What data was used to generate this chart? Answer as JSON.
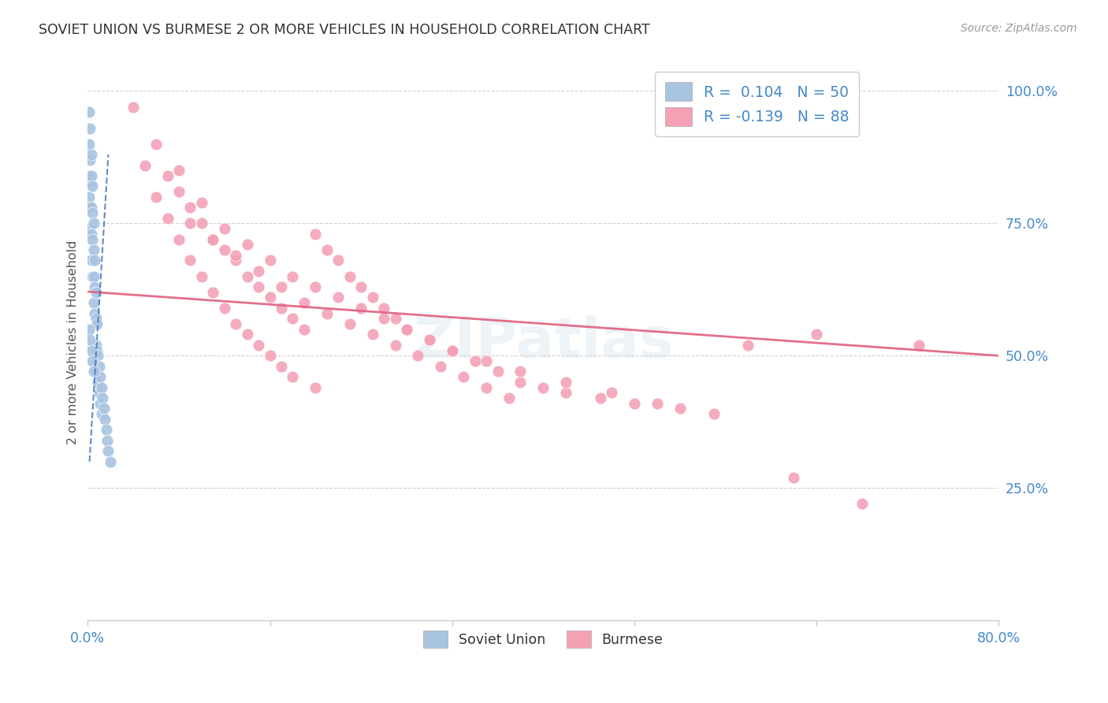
{
  "title": "SOVIET UNION VS BURMESE 2 OR MORE VEHICLES IN HOUSEHOLD CORRELATION CHART",
  "source": "Source: ZipAtlas.com",
  "ylabel": "2 or more Vehicles in Household",
  "legend_soviet_R": "0.104",
  "legend_soviet_N": "50",
  "legend_burmese_R": "-0.139",
  "legend_burmese_N": "88",
  "soviet_color": "#a8c4e0",
  "burmese_color": "#f4a0b5",
  "soviet_line_color": "#4477bb",
  "burmese_line_color": "#e06080",
  "xlim": [
    0.0,
    0.8
  ],
  "ylim": [
    0.0,
    1.05
  ],
  "x_tick_positions": [
    0.0,
    0.16,
    0.32,
    0.48,
    0.64,
    0.8
  ],
  "x_tick_labels": [
    "0.0%",
    "",
    "",
    "",
    "",
    "80.0%"
  ],
  "y_tick_positions": [
    0.25,
    0.5,
    0.75,
    1.0
  ],
  "y_tick_labels": [
    "25.0%",
    "50.0%",
    "75.0%",
    "100.0%"
  ],
  "soviet_x": [
    0.001,
    0.001,
    0.001,
    0.001,
    0.002,
    0.002,
    0.002,
    0.002,
    0.002,
    0.003,
    0.003,
    0.003,
    0.003,
    0.003,
    0.004,
    0.004,
    0.004,
    0.004,
    0.005,
    0.005,
    0.005,
    0.005,
    0.006,
    0.006,
    0.006,
    0.007,
    0.007,
    0.007,
    0.008,
    0.008,
    0.009,
    0.009,
    0.01,
    0.01,
    0.011,
    0.011,
    0.012,
    0.012,
    0.013,
    0.014,
    0.015,
    0.016,
    0.017,
    0.018,
    0.02,
    0.001,
    0.002,
    0.003,
    0.004,
    0.005
  ],
  "soviet_y": [
    0.96,
    0.9,
    0.84,
    0.8,
    0.93,
    0.87,
    0.83,
    0.78,
    0.74,
    0.88,
    0.84,
    0.78,
    0.73,
    0.68,
    0.82,
    0.77,
    0.72,
    0.65,
    0.75,
    0.7,
    0.65,
    0.6,
    0.68,
    0.63,
    0.58,
    0.62,
    0.57,
    0.52,
    0.56,
    0.51,
    0.5,
    0.45,
    0.48,
    0.43,
    0.46,
    0.41,
    0.44,
    0.39,
    0.42,
    0.4,
    0.38,
    0.36,
    0.34,
    0.32,
    0.3,
    0.55,
    0.53,
    0.51,
    0.49,
    0.47
  ],
  "burmese_x": [
    0.04,
    0.05,
    0.06,
    0.07,
    0.07,
    0.08,
    0.08,
    0.09,
    0.09,
    0.1,
    0.1,
    0.11,
    0.11,
    0.12,
    0.12,
    0.13,
    0.13,
    0.14,
    0.14,
    0.15,
    0.15,
    0.16,
    0.16,
    0.17,
    0.17,
    0.18,
    0.18,
    0.19,
    0.2,
    0.2,
    0.21,
    0.22,
    0.23,
    0.24,
    0.25,
    0.26,
    0.27,
    0.28,
    0.3,
    0.32,
    0.34,
    0.36,
    0.38,
    0.4,
    0.42,
    0.45,
    0.48,
    0.52,
    0.58,
    0.64,
    0.06,
    0.08,
    0.1,
    0.12,
    0.14,
    0.16,
    0.18,
    0.2,
    0.22,
    0.24,
    0.26,
    0.28,
    0.3,
    0.32,
    0.35,
    0.38,
    0.42,
    0.46,
    0.5,
    0.55,
    0.09,
    0.11,
    0.13,
    0.15,
    0.17,
    0.19,
    0.21,
    0.23,
    0.25,
    0.27,
    0.29,
    0.31,
    0.33,
    0.35,
    0.37,
    0.62,
    0.68,
    0.73
  ],
  "burmese_y": [
    0.97,
    0.86,
    0.8,
    0.84,
    0.76,
    0.81,
    0.72,
    0.78,
    0.68,
    0.75,
    0.65,
    0.72,
    0.62,
    0.7,
    0.59,
    0.68,
    0.56,
    0.65,
    0.54,
    0.63,
    0.52,
    0.61,
    0.5,
    0.59,
    0.48,
    0.57,
    0.46,
    0.55,
    0.73,
    0.44,
    0.7,
    0.68,
    0.65,
    0.63,
    0.61,
    0.59,
    0.57,
    0.55,
    0.53,
    0.51,
    0.49,
    0.47,
    0.45,
    0.44,
    0.43,
    0.42,
    0.41,
    0.4,
    0.52,
    0.54,
    0.9,
    0.85,
    0.79,
    0.74,
    0.71,
    0.68,
    0.65,
    0.63,
    0.61,
    0.59,
    0.57,
    0.55,
    0.53,
    0.51,
    0.49,
    0.47,
    0.45,
    0.43,
    0.41,
    0.39,
    0.75,
    0.72,
    0.69,
    0.66,
    0.63,
    0.6,
    0.58,
    0.56,
    0.54,
    0.52,
    0.5,
    0.48,
    0.46,
    0.44,
    0.42,
    0.27,
    0.22,
    0.52
  ],
  "burmese_trend_x0": 0.0,
  "burmese_trend_y0": 0.621,
  "burmese_trend_x1": 0.8,
  "burmese_trend_y1": 0.5,
  "soviet_trend_x0": 0.0015,
  "soviet_trend_y0": 0.3,
  "soviet_trend_x1": 0.018,
  "soviet_trend_y1": 0.88
}
